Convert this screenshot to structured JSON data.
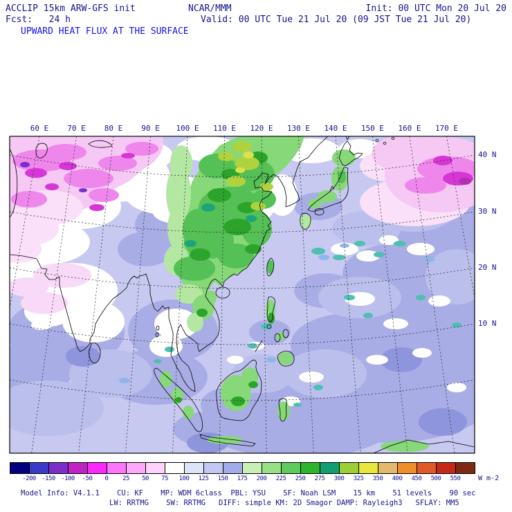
{
  "header": {
    "line1_left": "ACCLIP 15km ARW-GFS init",
    "line1_center": "NCAR/MMM",
    "line1_right": "Init: 00 UTC Mon 20 Jul 20",
    "line2_left": "Fcst:   24 h",
    "line2_right": "Valid: 00 UTC Tue 21 Jul 20 (09 JST Tue 21 Jul 20)",
    "title": "UPWARD HEAT FLUX AT THE SURFACE"
  },
  "map": {
    "lon_labels": [
      "60 E",
      "70 E",
      "80 E",
      "90 E",
      "100 E",
      "110 E",
      "120 E",
      "130 E",
      "140 E",
      "150 E",
      "160 E",
      "170 E"
    ],
    "lat_labels": [
      "40 N",
      "30 N",
      "20 N",
      "10 N"
    ]
  },
  "colorbar": {
    "ticks": [
      "-200",
      "-150",
      "-100",
      "-50",
      "0",
      "25",
      "50",
      "75",
      "100",
      "125",
      "150",
      "175",
      "200",
      "225",
      "250",
      "275",
      "300",
      "325",
      "350",
      "400",
      "450",
      "500",
      "550"
    ],
    "units": "W m-2",
    "colors": [
      "#000080",
      "#3A3AC8",
      "#7B2FC8",
      "#BE23C3",
      "#FA28FA",
      "#FB76FB",
      "#FCA8FC",
      "#FDD3FB",
      "#FFFFFF",
      "#DCE4F8",
      "#C2C8F2",
      "#A3ABE8",
      "#C9F0B4",
      "#97E087",
      "#5FCB5F",
      "#2FB42F",
      "#119E73",
      "#9CCF33",
      "#E8E83C",
      "#E3B96B",
      "#EF8E2B",
      "#E05A28",
      "#C42817",
      "#7E2A12"
    ]
  },
  "footer": {
    "line1": "Model Info: V4.1.1    CU: KF    MP: WDM 6class  PBL: YSU    SF: Noah LSM    15 km    51 levels    90 sec",
    "line2": "LW: RRTMG    SW: RRTMG   DIFF: simple KM: 2D Smagor DAMP: Rayleigh3   SFLAY: MM5"
  },
  "chart_data": {
    "type": "heatmap",
    "title": "UPWARD HEAT FLUX AT THE SURFACE",
    "units": "W m-2",
    "levels": [
      -200,
      -150,
      -100,
      -50,
      0,
      25,
      50,
      75,
      100,
      125,
      150,
      175,
      200,
      225,
      250,
      275,
      300,
      325,
      350,
      400,
      450,
      500,
      550
    ],
    "x_axis": {
      "label": "longitude",
      "ticks": [
        "60 E",
        "70 E",
        "80 E",
        "90 E",
        "100 E",
        "110 E",
        "120 E",
        "130 E",
        "140 E",
        "150 E",
        "160 E",
        "170 E"
      ]
    },
    "y_axis": {
      "label": "latitude",
      "ticks": [
        "40 N",
        "30 N",
        "20 N",
        "10 N"
      ]
    },
    "field_summary": [
      {
        "region": "eastern and northeastern China (daytime land)",
        "value_range_wm2": [
          150,
          325
        ]
      },
      {
        "region": "central Asia / northwest of domain (pre-dawn)",
        "value_range_wm2": [
          -100,
          0
        ]
      },
      {
        "region": "northwest Pacific (top-right pink area)",
        "value_range_wm2": [
          -100,
          0
        ]
      },
      {
        "region": "open oceans (lavender)",
        "value_range_wm2": [
          25,
          100
        ]
      },
      {
        "region": "India, Arabian sector, Indochina (white)",
        "value_range_wm2": [
          0,
          25
        ]
      },
      {
        "region": "Japan, Taiwan, Philippines, Maritime Continent (green)",
        "value_range_wm2": [
          100,
          250
        ]
      }
    ]
  }
}
